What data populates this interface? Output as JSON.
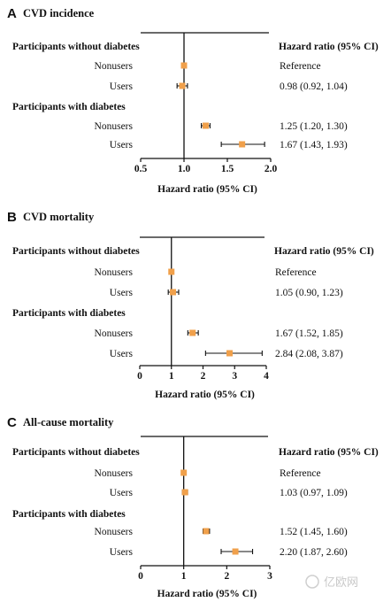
{
  "watermark": "亿欧网",
  "chart_data": [
    {
      "type": "forest",
      "panel_letter": "A",
      "title": "CVD incidence",
      "xlabel": "Hazard ratio (95% CI)",
      "column_header": "Hazard ratio (95% CI)",
      "xlim": [
        0.5,
        2.0
      ],
      "ticks": [
        "0.5",
        "1.0",
        "1.5",
        "2.0"
      ],
      "tick_values": [
        0.5,
        1.0,
        1.5,
        2.0
      ],
      "reference_line": 1.0,
      "point_color": "#f0a04b",
      "groups": [
        {
          "name": "Participants without diabetes",
          "rows": [
            {
              "label": "Nonusers",
              "hr": 1.0,
              "lo": 1.0,
              "hi": 1.0,
              "text": "Reference"
            },
            {
              "label": "Users",
              "hr": 0.98,
              "lo": 0.92,
              "hi": 1.04,
              "text": "0.98 (0.92, 1.04)"
            }
          ]
        },
        {
          "name": "Participants with diabetes",
          "rows": [
            {
              "label": "Nonusers",
              "hr": 1.25,
              "lo": 1.2,
              "hi": 1.3,
              "text": "1.25 (1.20, 1.30)"
            },
            {
              "label": "Users",
              "hr": 1.67,
              "lo": 1.43,
              "hi": 1.93,
              "text": "1.67 (1.43, 1.93)"
            }
          ]
        }
      ]
    },
    {
      "type": "forest",
      "panel_letter": "B",
      "title": "CVD mortality",
      "xlabel": "Hazard ratio (95% CI)",
      "column_header": "Hazard ratio (95% CI)",
      "xlim": [
        0,
        4
      ],
      "ticks": [
        "0",
        "1",
        "2",
        "3",
        "4"
      ],
      "tick_values": [
        0,
        1,
        2,
        3,
        4
      ],
      "reference_line": 1,
      "point_color": "#f0a04b",
      "groups": [
        {
          "name": "Participants without diabetes",
          "rows": [
            {
              "label": "Nonusers",
              "hr": 1.0,
              "lo": 1.0,
              "hi": 1.0,
              "text": "Reference"
            },
            {
              "label": "Users",
              "hr": 1.05,
              "lo": 0.9,
              "hi": 1.23,
              "text": "1.05 (0.90, 1.23)"
            }
          ]
        },
        {
          "name": "Participants with diabetes",
          "rows": [
            {
              "label": "Nonusers",
              "hr": 1.67,
              "lo": 1.52,
              "hi": 1.85,
              "text": "1.67 (1.52, 1.85)"
            },
            {
              "label": "Users",
              "hr": 2.84,
              "lo": 2.08,
              "hi": 3.87,
              "text": "2.84 (2.08, 3.87)"
            }
          ]
        }
      ]
    },
    {
      "type": "forest",
      "panel_letter": "C",
      "title": "All-cause mortality",
      "xlabel": "Hazard ratio (95% CI)",
      "column_header": "Hazard ratio (95% CI)",
      "xlim": [
        0,
        3
      ],
      "ticks": [
        "0",
        "1",
        "2",
        "3"
      ],
      "tick_values": [
        0,
        1,
        2,
        3
      ],
      "reference_line": 1,
      "point_color": "#f0a04b",
      "groups": [
        {
          "name": "Participants without diabetes",
          "rows": [
            {
              "label": "Nonusers",
              "hr": 1.0,
              "lo": 1.0,
              "hi": 1.0,
              "text": "Reference"
            },
            {
              "label": "Users",
              "hr": 1.03,
              "lo": 0.97,
              "hi": 1.09,
              "text": "1.03 (0.97, 1.09)"
            }
          ]
        },
        {
          "name": "Participants with diabetes",
          "rows": [
            {
              "label": "Nonusers",
              "hr": 1.52,
              "lo": 1.45,
              "hi": 1.6,
              "text": "1.52 (1.45, 1.60)"
            },
            {
              "label": "Users",
              "hr": 2.2,
              "lo": 1.87,
              "hi": 2.6,
              "text": "2.20 (1.87, 2.60)"
            }
          ]
        }
      ]
    }
  ]
}
